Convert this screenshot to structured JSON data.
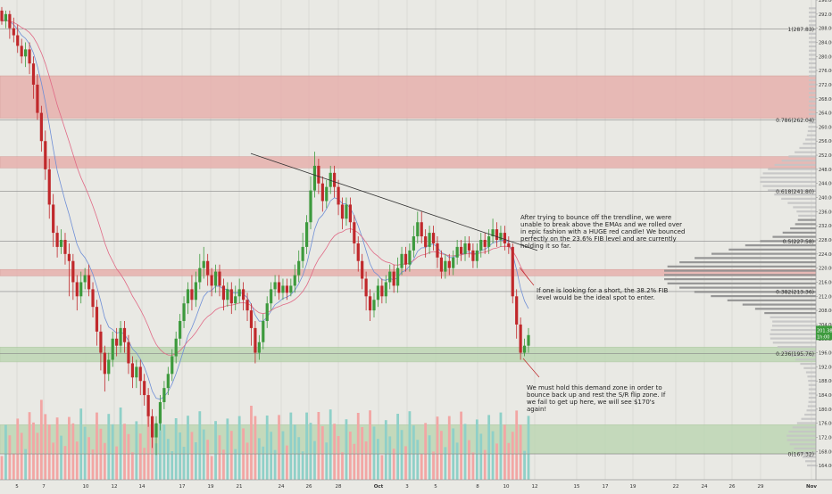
{
  "chart_data": {
    "type": "candlestick",
    "y_axis": {
      "min": 160,
      "max": 296,
      "ticks": [
        "164.00",
        "168.00",
        "172.00",
        "176.00",
        "180.00",
        "184.00",
        "188.00",
        "192.00",
        "196.00",
        "200.00",
        "204.00",
        "208.00",
        "212.00",
        "216.00",
        "220.00",
        "224.00",
        "228.00",
        "232.00",
        "236.00",
        "240.00",
        "244.00",
        "248.00",
        "252.00",
        "256.00",
        "260.00",
        "264.00",
        "268.00",
        "272.00",
        "276.00",
        "280.00",
        "284.00",
        "288.00",
        "292.00",
        "296.00"
      ]
    },
    "x_axis_labels": [
      "5",
      "7",
      "10",
      "12",
      "14",
      "17",
      "19",
      "21",
      "24",
      "26",
      "28",
      "Oct",
      "3",
      "5",
      "8",
      "10",
      "12",
      "15",
      "17",
      "19",
      "22",
      "24",
      "26",
      "29",
      "Nov"
    ],
    "current_price_labels": [
      "201.38",
      "1h:00"
    ],
    "fib_levels": [
      {
        "label": "1(287.83)",
        "value": 287.83
      },
      {
        "label": "0.786(262.04)",
        "value": 262.04
      },
      {
        "label": "0.618(241.80)",
        "value": 241.8
      },
      {
        "label": "0.5(227.58)",
        "value": 227.58
      },
      {
        "label": "0.382(213.36)",
        "value": 213.36
      },
      {
        "label": "0.236(195.76)",
        "value": 195.76
      },
      {
        "label": "0(167.32)",
        "value": 167.32
      }
    ],
    "zones": [
      {
        "kind": "resistance",
        "from": 262.5,
        "to": 274.5,
        "color": "#e7a9a6"
      },
      {
        "kind": "resistance",
        "from": 248.4,
        "to": 251.6,
        "color": "#e7a9a6"
      },
      {
        "kind": "resistance",
        "from": 217.8,
        "to": 219.6,
        "color": "#e7a9a6"
      },
      {
        "kind": "demand",
        "from": 193.4,
        "to": 197.6,
        "color": "#b8d4ae"
      },
      {
        "kind": "demand",
        "from": 167.4,
        "to": 175.6,
        "color": "#b8d4ae"
      }
    ],
    "trendline": {
      "from_price": 252.5,
      "to_price": 225.0
    },
    "annotations": [
      "After trying to bounce off the trendline, we were unable to break above the EMAs and we rolled over in epic fashion with a HUGE red candle! We bounced perfectly on the 23.6% FIB level and are currently holding it so far.",
      "If one is looking for a short, the 38.2% FIB level would be the ideal spot to enter.",
      "We must hold this demand zone in order to bounce back up and rest the S/R flip zone. If we fail to get up here, we will see $170's again!"
    ],
    "candles": [
      [
        293,
        290,
        294,
        289
      ],
      [
        290,
        292,
        293,
        288
      ],
      [
        292,
        288,
        293,
        285
      ],
      [
        288,
        286,
        291,
        284
      ],
      [
        286,
        283,
        289,
        281
      ],
      [
        283,
        280,
        285,
        278
      ],
      [
        280,
        282,
        284,
        277
      ],
      [
        282,
        278,
        284,
        275
      ],
      [
        278,
        272,
        280,
        268
      ],
      [
        272,
        264,
        275,
        262
      ],
      [
        264,
        256,
        266,
        253
      ],
      [
        256,
        248,
        259,
        245
      ],
      [
        248,
        238,
        251,
        234
      ],
      [
        238,
        230,
        241,
        226
      ],
      [
        230,
        226,
        232,
        223
      ],
      [
        226,
        228,
        231,
        224
      ],
      [
        228,
        224,
        230,
        221
      ],
      [
        224,
        222,
        227,
        212
      ],
      [
        222,
        216,
        224,
        211
      ],
      [
        216,
        212,
        218,
        208
      ],
      [
        212,
        216,
        219,
        210
      ],
      [
        216,
        218,
        220,
        214
      ],
      [
        218,
        214,
        221,
        212
      ],
      [
        214,
        209,
        216,
        206
      ],
      [
        209,
        202,
        211,
        198
      ],
      [
        202,
        196,
        204,
        191
      ],
      [
        196,
        190,
        198,
        185
      ],
      [
        190,
        194,
        196,
        188
      ],
      [
        194,
        200,
        202,
        192
      ],
      [
        200,
        198,
        203,
        195
      ],
      [
        198,
        203,
        205,
        196
      ],
      [
        203,
        199,
        205,
        196
      ],
      [
        199,
        193,
        201,
        190
      ],
      [
        193,
        189,
        195,
        186
      ],
      [
        189,
        192,
        194,
        186
      ],
      [
        192,
        188,
        194,
        184
      ],
      [
        188,
        184,
        190,
        181
      ],
      [
        184,
        178,
        186,
        175
      ],
      [
        178,
        172,
        180,
        169
      ],
      [
        172,
        176,
        178,
        167
      ],
      [
        176,
        182,
        184,
        174
      ],
      [
        182,
        186,
        188,
        180
      ],
      [
        186,
        190,
        192,
        184
      ],
      [
        190,
        195,
        197,
        188
      ],
      [
        195,
        200,
        202,
        193
      ],
      [
        200,
        205,
        207,
        198
      ],
      [
        205,
        210,
        212,
        203
      ],
      [
        210,
        214,
        216,
        207
      ],
      [
        214,
        211,
        218,
        208
      ],
      [
        211,
        216,
        219,
        209
      ],
      [
        216,
        220,
        224,
        214
      ],
      [
        220,
        222,
        226,
        217
      ],
      [
        222,
        218,
        224,
        215
      ],
      [
        218,
        215,
        220,
        212
      ],
      [
        215,
        219,
        221,
        213
      ],
      [
        219,
        215,
        221,
        212
      ],
      [
        215,
        211,
        217,
        208
      ],
      [
        211,
        214,
        216,
        209
      ],
      [
        214,
        210,
        216,
        207
      ],
      [
        210,
        212,
        215,
        208
      ],
      [
        212,
        214,
        217,
        210
      ],
      [
        214,
        211,
        216,
        208
      ],
      [
        211,
        208,
        213,
        205
      ],
      [
        208,
        203,
        210,
        198
      ],
      [
        203,
        196,
        205,
        193
      ],
      [
        196,
        199,
        201,
        194
      ],
      [
        199,
        205,
        207,
        197
      ],
      [
        205,
        210,
        212,
        203
      ],
      [
        210,
        214,
        216,
        208
      ],
      [
        214,
        216,
        218,
        212
      ],
      [
        216,
        213,
        218,
        211
      ],
      [
        213,
        215,
        217,
        211
      ],
      [
        215,
        213,
        217,
        211
      ],
      [
        213,
        215,
        217,
        212
      ],
      [
        215,
        218,
        221,
        213
      ],
      [
        218,
        222,
        225,
        216
      ],
      [
        222,
        226,
        230,
        220
      ],
      [
        226,
        233,
        235,
        224
      ],
      [
        233,
        242,
        246,
        231
      ],
      [
        242,
        249,
        253,
        240
      ],
      [
        249,
        244,
        251,
        241
      ],
      [
        244,
        239,
        246,
        236
      ],
      [
        239,
        243,
        245,
        237
      ],
      [
        243,
        247,
        249,
        241
      ],
      [
        247,
        243,
        249,
        240
      ],
      [
        243,
        238,
        245,
        235
      ],
      [
        238,
        234,
        240,
        231
      ],
      [
        234,
        238,
        240,
        232
      ],
      [
        238,
        233,
        240,
        230
      ],
      [
        233,
        227,
        235,
        224
      ],
      [
        227,
        222,
        229,
        219
      ],
      [
        222,
        217,
        224,
        214
      ],
      [
        217,
        212,
        219,
        208
      ],
      [
        212,
        208,
        214,
        205
      ],
      [
        208,
        211,
        213,
        206
      ],
      [
        211,
        215,
        217,
        209
      ],
      [
        215,
        212,
        217,
        210
      ],
      [
        212,
        216,
        218,
        210
      ],
      [
        216,
        219,
        221,
        214
      ],
      [
        219,
        215,
        221,
        213
      ],
      [
        215,
        220,
        223,
        213
      ],
      [
        220,
        224,
        226,
        218
      ],
      [
        224,
        221,
        226,
        219
      ],
      [
        221,
        225,
        227,
        219
      ],
      [
        225,
        229,
        232,
        223
      ],
      [
        229,
        233,
        236,
        227
      ],
      [
        233,
        229,
        236,
        227
      ],
      [
        229,
        226,
        231,
        223
      ],
      [
        226,
        230,
        232,
        224
      ],
      [
        230,
        227,
        232,
        225
      ],
      [
        227,
        223,
        229,
        220
      ],
      [
        223,
        219,
        225,
        217
      ],
      [
        219,
        222,
        224,
        217
      ],
      [
        222,
        220,
        224,
        218
      ],
      [
        220,
        223,
        225,
        218
      ],
      [
        223,
        226,
        228,
        221
      ],
      [
        226,
        224,
        228,
        222
      ],
      [
        224,
        227,
        229,
        222
      ],
      [
        227,
        225,
        229,
        223
      ],
      [
        225,
        222,
        227,
        220
      ],
      [
        222,
        225,
        227,
        220
      ],
      [
        225,
        228,
        230,
        223
      ],
      [
        228,
        226,
        230,
        224
      ],
      [
        226,
        229,
        231,
        224
      ],
      [
        229,
        231,
        234,
        227
      ],
      [
        231,
        228,
        233,
        226
      ],
      [
        228,
        230,
        232,
        226
      ],
      [
        230,
        227,
        232,
        225
      ],
      [
        227,
        226,
        229,
        224
      ],
      [
        226,
        212,
        227,
        210
      ],
      [
        212,
        204,
        214,
        200
      ],
      [
        204,
        196,
        206,
        194
      ],
      [
        196,
        198,
        200,
        195
      ],
      [
        198,
        201,
        203,
        196
      ]
    ]
  }
}
